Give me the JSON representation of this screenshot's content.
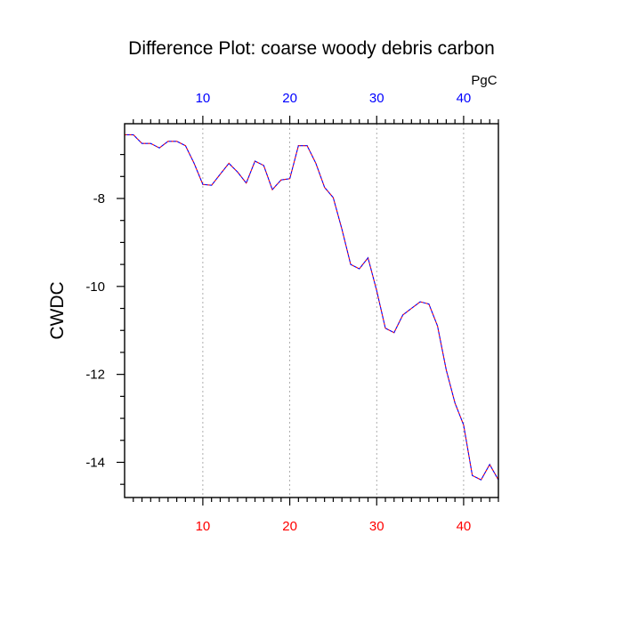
{
  "chart_data": {
    "type": "line",
    "title": "Difference Plot: coarse woody debris carbon",
    "ylabel": "CWDC",
    "unit_label": "PgC",
    "xlim": [
      1,
      44
    ],
    "ylim": [
      -14.8,
      -6.3
    ],
    "grid": "vertical dotted lines at major x ticks",
    "x_major_ticks": [
      10,
      20,
      30,
      40
    ],
    "x_minor_ticks": [
      2,
      3,
      4,
      5,
      6,
      7,
      8,
      9,
      11,
      12,
      13,
      14,
      15,
      16,
      17,
      18,
      19,
      21,
      22,
      23,
      24,
      25,
      26,
      27,
      28,
      29,
      31,
      32,
      33,
      34,
      35,
      36,
      37,
      38,
      39,
      41,
      42,
      43,
      44
    ],
    "y_major_ticks": [
      -8,
      -10,
      -12,
      -14
    ],
    "y_minor_ticks": [
      -7,
      -7.5,
      -8.5,
      -9,
      -9.5,
      -10.5,
      -11,
      -11.5,
      -12.5,
      -13,
      -13.5,
      -14.5
    ],
    "bottom_tick_labels": [
      "10",
      "20",
      "30",
      "40"
    ],
    "top_tick_labels": [
      "10",
      "20",
      "30",
      "40"
    ],
    "left_tick_labels": [
      "-8",
      "-10",
      "-12",
      "-14"
    ],
    "colors": {
      "bottom_tick_labels": "#ff0000",
      "top_tick_labels": "#0000ff",
      "line_primary": "#ff0000",
      "line_secondary": "#0000ff"
    },
    "series": [
      {
        "x": [
          1,
          2,
          3,
          4,
          5,
          6,
          7,
          8,
          9,
          10,
          11,
          12,
          13,
          14,
          15,
          16,
          17,
          18,
          19,
          20,
          21,
          22,
          23,
          24,
          25,
          26,
          27,
          28,
          29,
          30,
          31,
          32,
          33,
          34,
          35,
          36,
          37,
          38,
          39,
          40,
          41,
          42,
          43,
          44
        ],
        "values": [
          -6.55,
          -6.55,
          -6.75,
          -6.75,
          -6.85,
          -6.7,
          -6.7,
          -6.8,
          -7.2,
          -7.68,
          -7.7,
          -7.45,
          -7.2,
          -7.4,
          -7.65,
          -7.15,
          -7.25,
          -7.8,
          -7.58,
          -7.55,
          -6.8,
          -6.8,
          -7.2,
          -7.75,
          -7.98,
          -8.7,
          -9.5,
          -9.6,
          -9.35,
          -10.1,
          -10.95,
          -11.05,
          -10.65,
          -10.5,
          -10.35,
          -10.4,
          -10.9,
          -11.9,
          -12.65,
          -13.15,
          -14.3,
          -14.4,
          -14.05,
          -14.4
        ]
      }
    ]
  }
}
